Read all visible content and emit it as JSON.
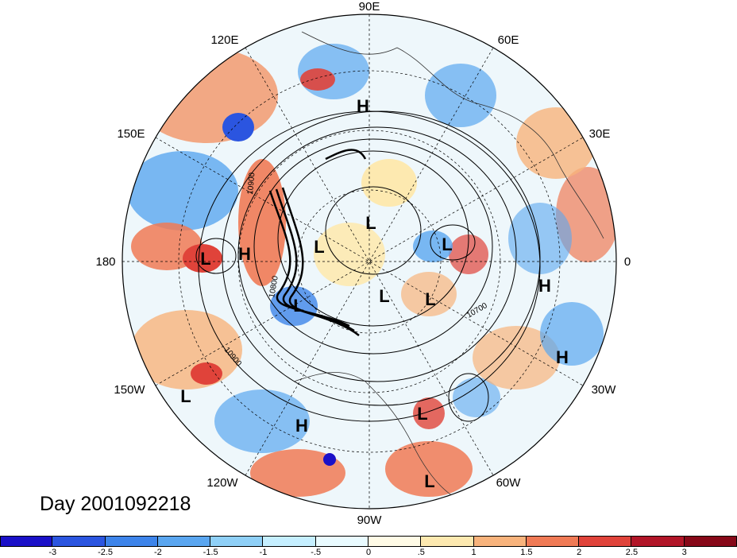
{
  "title": "Day 2001092218",
  "longitude_labels": [
    "90E",
    "60E",
    "30E",
    "0",
    "30W",
    "60W",
    "90W",
    "120W",
    "150W",
    "180",
    "150E",
    "120E"
  ],
  "pressure_centers": [
    {
      "type": "H",
      "lon_label": "near 90E"
    },
    {
      "type": "L"
    },
    {
      "type": "L"
    },
    {
      "type": "L"
    },
    {
      "type": "L"
    },
    {
      "type": "L"
    },
    {
      "type": "L"
    },
    {
      "type": "H"
    },
    {
      "type": "H"
    },
    {
      "type": "H"
    },
    {
      "type": "L"
    },
    {
      "type": "L"
    },
    {
      "type": "L"
    },
    {
      "type": "H"
    },
    {
      "type": "L"
    }
  ],
  "contour_labels": [
    "10900",
    "10800",
    "10700",
    "10900"
  ],
  "colorbar": {
    "ticks": [
      "-3",
      "-2.5",
      "-2",
      "-1.5",
      "-1",
      "-.5",
      "0",
      ".5",
      "1",
      "1.5",
      "2",
      "2.5",
      "3"
    ],
    "colors": [
      "#1a10c8",
      "#2b55e0",
      "#3d84ea",
      "#5aa6f0",
      "#8fd0f7",
      "#c5efff",
      "#e9fbff",
      "#fffbe6",
      "#fde9b0",
      "#f8b37c",
      "#f07a55",
      "#e0433a",
      "#b21528",
      "#870818"
    ]
  }
}
